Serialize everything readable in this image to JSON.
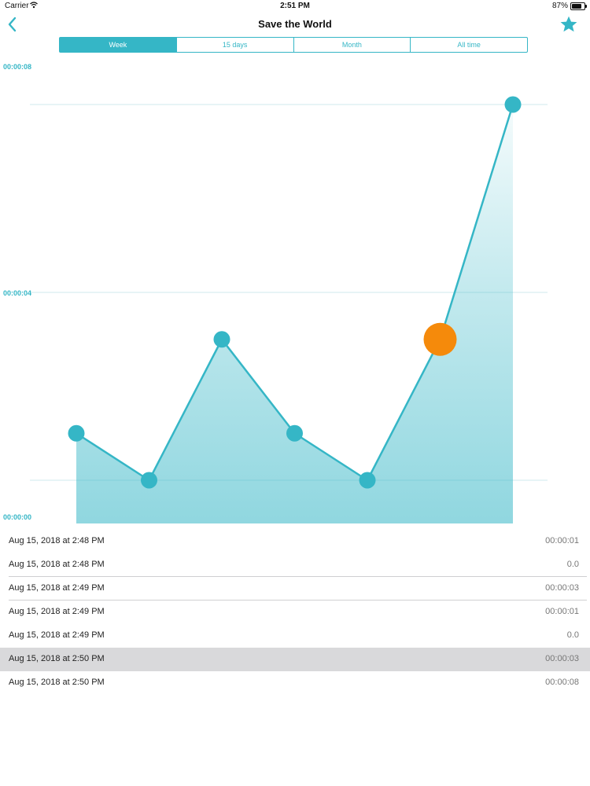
{
  "status_bar": {
    "carrier": "Carrier",
    "time": "2:51 PM",
    "battery": "87%"
  },
  "nav": {
    "title": "Save the World",
    "back_icon": "chevron-left-icon",
    "favorite_icon": "star-icon"
  },
  "segments": {
    "items": [
      {
        "label": "Week",
        "selected": true
      },
      {
        "label": "15 days",
        "selected": false
      },
      {
        "label": "Month",
        "selected": false
      },
      {
        "label": "All time",
        "selected": false
      }
    ]
  },
  "colors": {
    "accent": "#35b6c6",
    "highlight": "#f58a0b",
    "selected_row": "#d9d9db"
  },
  "chart_data": {
    "type": "area",
    "y_ticks": [
      "00:00:08",
      "00:00:04",
      "00:00:00"
    ],
    "ylim": [
      0,
      8
    ],
    "grid": true,
    "values": [
      1,
      0,
      3,
      1,
      0,
      3,
      8
    ],
    "highlighted_index": 5
  },
  "records": [
    {
      "date": "Aug 15, 2018 at 2:48 PM",
      "duration": "00:00:01"
    },
    {
      "date": "Aug 15, 2018 at 2:48 PM",
      "duration": "0.0"
    },
    {
      "date": "Aug 15, 2018 at 2:49 PM",
      "duration": "00:00:03"
    },
    {
      "date": "Aug 15, 2018 at 2:49 PM",
      "duration": "00:00:01"
    },
    {
      "date": "Aug 15, 2018 at 2:49 PM",
      "duration": "0.0"
    },
    {
      "date": "Aug 15, 2018 at 2:50 PM",
      "duration": "00:00:03"
    },
    {
      "date": "Aug 15, 2018 at 2:50 PM",
      "duration": "00:00:08"
    }
  ]
}
